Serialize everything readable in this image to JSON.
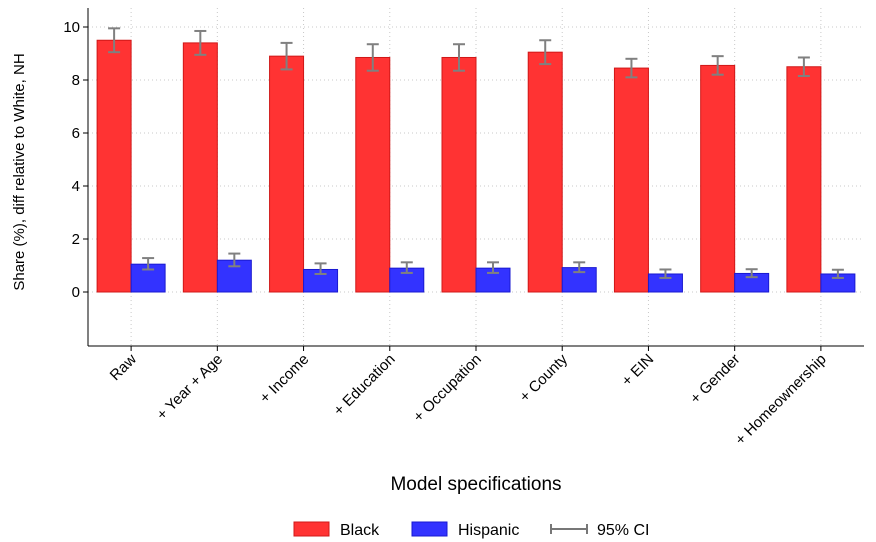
{
  "chart_data": {
    "type": "bar",
    "title": "",
    "xlabel": "Model specifications",
    "ylabel": "Share (%), diff relative to White, NH",
    "ylim": [
      -2,
      10
    ],
    "yticks": [
      0,
      2,
      4,
      6,
      8,
      10
    ],
    "ytick_labels": [
      "0",
      "2",
      "4",
      "6",
      "8",
      "10"
    ],
    "grid": true,
    "legend_position": "bottom",
    "categories": [
      "Raw",
      "+ Year + Age",
      "+ Income",
      "+ Education",
      "+ Occupation",
      "+ County",
      "+ EIN",
      "+ Gender",
      "+ Homeownership"
    ],
    "series": [
      {
        "name": "Black",
        "color": "#ff3333",
        "values": [
          9.5,
          9.4,
          8.9,
          8.85,
          8.85,
          9.05,
          8.45,
          8.55,
          8.5
        ],
        "ci_low": [
          9.05,
          8.95,
          8.4,
          8.35,
          8.35,
          8.6,
          8.1,
          8.2,
          8.15
        ],
        "ci_high": [
          9.95,
          9.85,
          9.4,
          9.35,
          9.35,
          9.5,
          8.8,
          8.9,
          8.85
        ]
      },
      {
        "name": "Hispanic",
        "color": "#3333ff",
        "values": [
          1.05,
          1.2,
          0.85,
          0.9,
          0.9,
          0.92,
          0.68,
          0.7,
          0.68
        ],
        "ci_low": [
          0.85,
          0.97,
          0.68,
          0.72,
          0.72,
          0.75,
          0.53,
          0.56,
          0.53
        ],
        "ci_high": [
          1.28,
          1.45,
          1.08,
          1.12,
          1.12,
          1.12,
          0.85,
          0.86,
          0.84
        ]
      }
    ],
    "legend": [
      {
        "label": "Black",
        "kind": "bar",
        "color": "#ff3333"
      },
      {
        "label": "Hispanic",
        "kind": "bar",
        "color": "#3333ff"
      },
      {
        "label": "95% CI",
        "kind": "errorbar",
        "color": "#777777"
      }
    ]
  }
}
